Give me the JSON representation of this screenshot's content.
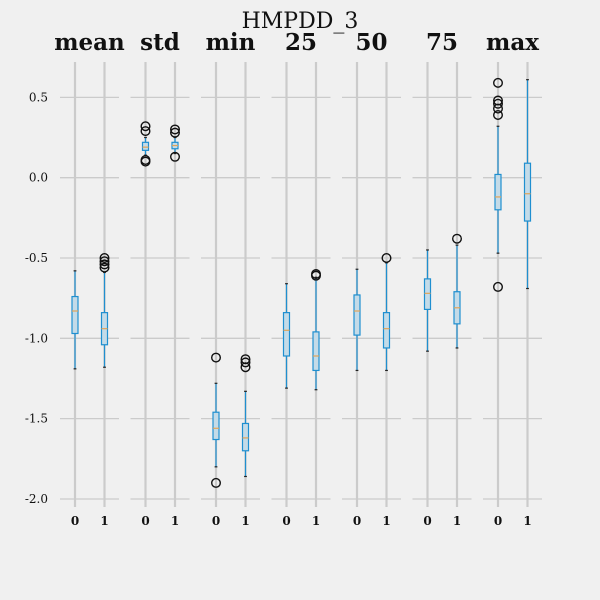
{
  "chart_data": {
    "type": "box",
    "suptitle": "HMPDD_3",
    "yticks": [
      -2.0,
      -1.5,
      -1.0,
      -0.5,
      0.0,
      0.5
    ],
    "ytick_labels": [
      "-2.0",
      "-1.5",
      "-1.0",
      "-0.5",
      "0.0",
      "0.5"
    ],
    "ylim": [
      -2.05,
      0.72
    ],
    "grid": true,
    "panels": [
      {
        "title": "mean",
        "groups": [
          {
            "label": "0",
            "q1": -0.97,
            "median": -0.83,
            "q3": -0.74,
            "whislo": -1.19,
            "whishi": -0.58,
            "fliers": []
          },
          {
            "label": "1",
            "q1": -1.04,
            "median": -0.94,
            "q3": -0.84,
            "whislo": -1.18,
            "whishi": -0.59,
            "fliers": [
              -0.5,
              -0.52,
              -0.54,
              -0.56
            ]
          }
        ]
      },
      {
        "title": "std",
        "groups": [
          {
            "label": "0",
            "q1": 0.17,
            "median": 0.19,
            "q3": 0.22,
            "whislo": 0.14,
            "whishi": 0.25,
            "fliers": [
              0.29,
              0.32,
              0.11,
              0.1
            ]
          },
          {
            "label": "1",
            "q1": 0.18,
            "median": 0.2,
            "q3": 0.22,
            "whislo": 0.15,
            "whishi": 0.25,
            "fliers": [
              0.3,
              0.28,
              0.13
            ]
          }
        ]
      },
      {
        "title": "min",
        "groups": [
          {
            "label": "0",
            "q1": -1.63,
            "median": -1.56,
            "q3": -1.46,
            "whislo": -1.8,
            "whishi": -1.28,
            "fliers": [
              -1.12,
              -1.9
            ]
          },
          {
            "label": "1",
            "q1": -1.7,
            "median": -1.62,
            "q3": -1.53,
            "whislo": -1.86,
            "whishi": -1.33,
            "fliers": [
              -1.13,
              -1.15,
              -1.18
            ]
          }
        ]
      },
      {
        "title": "25",
        "groups": [
          {
            "label": "0",
            "q1": -1.11,
            "median": -0.95,
            "q3": -0.84,
            "whislo": -1.31,
            "whishi": -0.66,
            "fliers": []
          },
          {
            "label": "1",
            "q1": -1.2,
            "median": -1.11,
            "q3": -0.96,
            "whislo": -1.32,
            "whishi": -0.62,
            "fliers": [
              -0.61,
              -0.6
            ]
          }
        ]
      },
      {
        "title": "50",
        "groups": [
          {
            "label": "0",
            "q1": -0.98,
            "median": -0.83,
            "q3": -0.73,
            "whislo": -1.2,
            "whishi": -0.57,
            "fliers": []
          },
          {
            "label": "1",
            "q1": -1.06,
            "median": -0.94,
            "q3": -0.84,
            "whislo": -1.2,
            "whishi": -0.53,
            "fliers": [
              -0.5
            ]
          }
        ]
      },
      {
        "title": "75",
        "groups": [
          {
            "label": "0",
            "q1": -0.82,
            "median": -0.72,
            "q3": -0.63,
            "whislo": -1.08,
            "whishi": -0.45,
            "fliers": []
          },
          {
            "label": "1",
            "q1": -0.91,
            "median": -0.81,
            "q3": -0.71,
            "whislo": -1.06,
            "whishi": -0.42,
            "fliers": [
              -0.38
            ]
          }
        ]
      },
      {
        "title": "max",
        "groups": [
          {
            "label": "0",
            "q1": -0.2,
            "median": -0.12,
            "q3": 0.02,
            "whislo": -0.47,
            "whishi": 0.32,
            "fliers": [
              0.59,
              0.48,
              0.46,
              0.43,
              0.39,
              -0.68
            ]
          },
          {
            "label": "1",
            "q1": -0.27,
            "median": -0.1,
            "q3": 0.09,
            "whislo": -0.69,
            "whishi": 0.61,
            "fliers": []
          }
        ]
      }
    ]
  },
  "colors": {
    "background": "#f0f0f0",
    "grid": "#cbcbcb",
    "box_fill": "#c4dbe8",
    "box_edge": "#1f8fd0",
    "median": "#e0a45a",
    "flier": "#111111"
  }
}
